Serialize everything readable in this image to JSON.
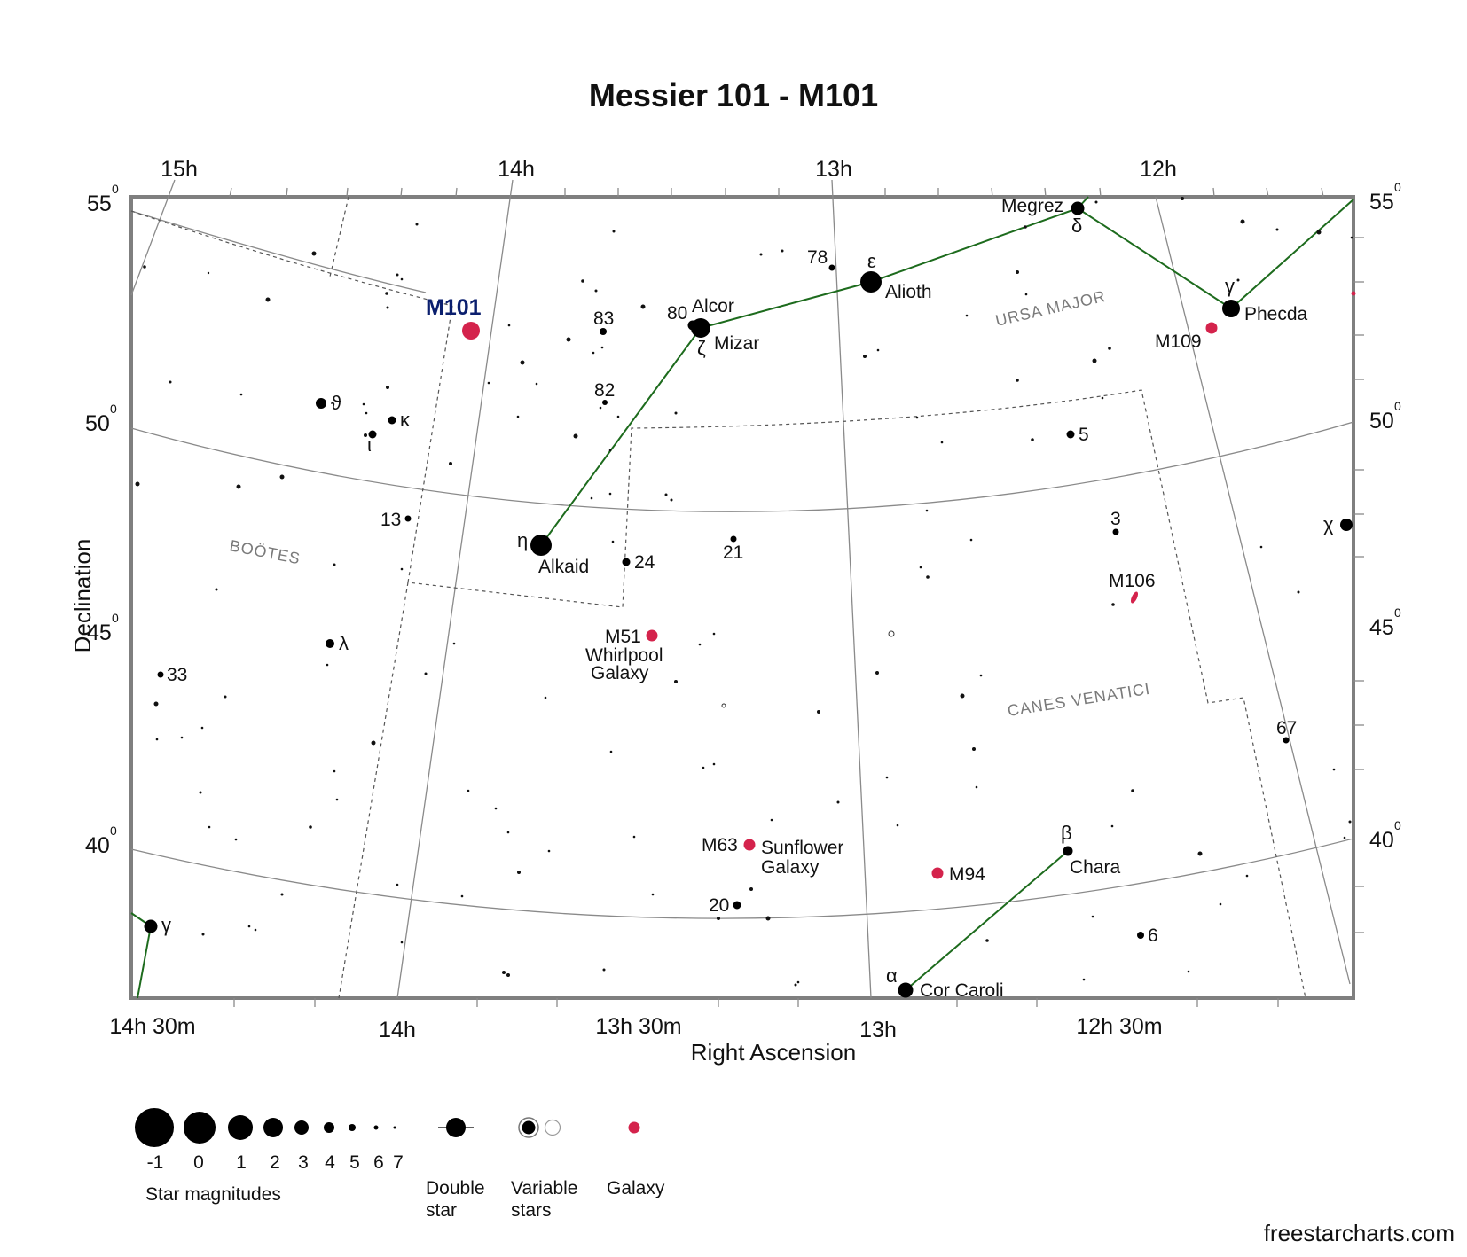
{
  "title": "Messier 101 - M101",
  "credit": "freestarcharts.com",
  "colors": {
    "galaxy": "#d4234c",
    "target_label": "#0b1f6e",
    "asterism": "#1d6b1d",
    "frame": "#7f7f7f",
    "grid": "#8a8a8a",
    "boundary": "#555555",
    "const_name": "#7a7a7a"
  },
  "axes": {
    "y_title": "Declination",
    "x_title": "Right Ascension",
    "top_ra_labels": [
      "15h",
      "14h",
      "13h",
      "12h"
    ],
    "bottom_ra_labels": [
      "14h 30m",
      "14h",
      "13h 30m",
      "13h",
      "12h 30m"
    ],
    "dec_labels": [
      {
        "value": "55",
        "sup": "0"
      },
      {
        "value": "50",
        "sup": "0"
      },
      {
        "value": "45",
        "sup": "0"
      },
      {
        "value": "40",
        "sup": "0"
      }
    ]
  },
  "constellations": [
    "URSA MAJOR",
    "BOÖTES",
    "CANES VENATICI"
  ],
  "target": {
    "label": "M101"
  },
  "stars": [
    {
      "name": "Megrez",
      "greek": "δ"
    },
    {
      "name": "Alioth",
      "greek": "ε"
    },
    {
      "name": "Alcor",
      "flamsteed": "80"
    },
    {
      "name": "Mizar",
      "greek": "ζ"
    },
    {
      "name": "Alkaid",
      "greek": "η"
    },
    {
      "name": "Phecda",
      "greek": "γ"
    },
    {
      "name": "Chara",
      "greek": "β"
    },
    {
      "name": "Cor Caroli",
      "greek": "α"
    }
  ],
  "numbered_stars": [
    "78",
    "83",
    "82",
    "13",
    "24",
    "21",
    "5",
    "3",
    "67",
    "33",
    "20",
    "6"
  ],
  "greek_stars": [
    "ϑ",
    "κ",
    "ι",
    "λ",
    "χ",
    "γ"
  ],
  "galaxies": [
    {
      "id": "M101",
      "label": "M101"
    },
    {
      "id": "M109",
      "label": "M109"
    },
    {
      "id": "M106",
      "label": "M106"
    },
    {
      "id": "M51",
      "label": "M51",
      "name_lines": [
        "Whirlpool",
        "Galaxy"
      ]
    },
    {
      "id": "M63",
      "label": "M63",
      "name_lines": [
        "Sunflower",
        "Galaxy"
      ]
    },
    {
      "id": "M94",
      "label": "M94"
    }
  ],
  "legend": {
    "magnitudes": [
      "-1",
      "0",
      "1",
      "2",
      "3",
      "4",
      "5",
      "6",
      "7"
    ],
    "magnitudes_title": "Star magnitudes",
    "double_star": [
      "Double",
      "star"
    ],
    "variable_stars": [
      "Variable",
      "stars"
    ],
    "galaxy": "Galaxy"
  }
}
